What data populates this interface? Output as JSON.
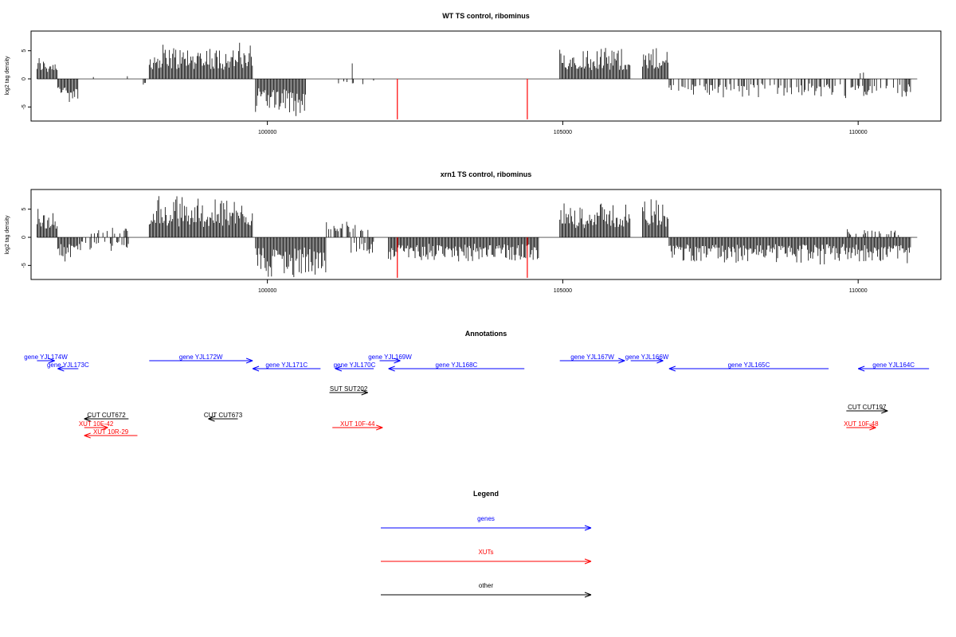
{
  "chart_data": [
    {
      "type": "bar",
      "title": "WT TS control, ribominus",
      "ylabel": "log2 tag density",
      "xlim": [
        96000,
        111400
      ],
      "ylim": [
        -7.5,
        8.5
      ],
      "x_ticks": [
        100000,
        105000,
        110000
      ],
      "x_tick_labels": [
        "100000",
        "105000",
        "110000"
      ],
      "y_ticks": [
        -5,
        0,
        5
      ],
      "y_tick_labels": [
        "-5",
        "0",
        "5"
      ],
      "x_range": [
        96100,
        111000
      ],
      "segments": [
        {
          "from": 96100,
          "to": 96450,
          "sign": 1,
          "amp": 3.0
        },
        {
          "from": 96450,
          "to": 96800,
          "sign": -1,
          "amp": 3.0
        },
        {
          "from": 97000,
          "to": 97900,
          "sign": 1,
          "amp": 0.6,
          "density": 0.05
        },
        {
          "from": 97900,
          "to": 97950,
          "sign": -1,
          "amp": 0.8
        },
        {
          "from": 98000,
          "to": 99750,
          "sign": 1,
          "amp": 4.5
        },
        {
          "from": 99800,
          "to": 100650,
          "sign": -1,
          "amp": 4.5
        },
        {
          "from": 101150,
          "to": 102000,
          "sign": -1,
          "amp": 0.8,
          "density": 0.2
        },
        {
          "from": 101400,
          "to": 101550,
          "sign": 1,
          "amp": 2.0,
          "density": 0.2
        },
        {
          "from": 104950,
          "to": 106150,
          "sign": 1,
          "amp": 4.2
        },
        {
          "from": 106350,
          "to": 106800,
          "sign": 1,
          "amp": 3.8
        },
        {
          "from": 106800,
          "to": 110900,
          "sign": -1,
          "amp": 2.3,
          "density": 0.5
        },
        {
          "from": 110000,
          "to": 110100,
          "sign": 1,
          "amp": 1.2,
          "density": 0.3
        }
      ],
      "highlights": [
        {
          "x": 102200,
          "value": -7.2,
          "color": "#ff0000"
        },
        {
          "x": 104400,
          "value": -7.2,
          "color": "#ff0000"
        }
      ]
    },
    {
      "type": "bar",
      "title": "xrn1 TS control, ribominus",
      "ylabel": "log2 tag density",
      "xlim": [
        96000,
        111400
      ],
      "ylim": [
        -7.5,
        8.5
      ],
      "x_ticks": [
        100000,
        105000,
        110000
      ],
      "x_tick_labels": [
        "100000",
        "105000",
        "110000"
      ],
      "y_ticks": [
        -5,
        0,
        5
      ],
      "y_tick_labels": [
        "-5",
        "0",
        "5"
      ],
      "x_range": [
        96100,
        111000
      ],
      "segments": [
        {
          "from": 96100,
          "to": 96450,
          "sign": 1,
          "amp": 3.5
        },
        {
          "from": 96450,
          "to": 96800,
          "sign": -1,
          "amp": 3.0
        },
        {
          "from": 96800,
          "to": 97650,
          "sign": -1,
          "amp": 1.8,
          "density": 0.5
        },
        {
          "from": 97000,
          "to": 97650,
          "sign": 1,
          "amp": 1.2,
          "density": 0.3
        },
        {
          "from": 98000,
          "to": 99750,
          "sign": 1,
          "amp": 5.2
        },
        {
          "from": 99800,
          "to": 101000,
          "sign": -1,
          "amp": 5.0
        },
        {
          "from": 101000,
          "to": 101800,
          "sign": 1,
          "amp": 2.2,
          "density": 0.6
        },
        {
          "from": 101400,
          "to": 101800,
          "sign": -1,
          "amp": 2.0,
          "density": 0.5
        },
        {
          "from": 102050,
          "to": 104600,
          "sign": -1,
          "amp": 3.0
        },
        {
          "from": 104950,
          "to": 106150,
          "sign": 1,
          "amp": 4.5
        },
        {
          "from": 106350,
          "to": 106800,
          "sign": 1,
          "amp": 5.0
        },
        {
          "from": 106800,
          "to": 110900,
          "sign": -1,
          "amp": 3.3
        },
        {
          "from": 109800,
          "to": 110700,
          "sign": 1,
          "amp": 1.0,
          "density": 0.3
        }
      ],
      "highlights": [
        {
          "x": 102200,
          "value": -7.2,
          "color": "#ff0000"
        },
        {
          "x": 104400,
          "value": -7.2,
          "color": "#ff0000"
        }
      ]
    }
  ],
  "annotations": {
    "title": "Annotations",
    "features": [
      {
        "label": "gene YJL174W",
        "x1": 96100,
        "x2": 96400,
        "dir": "right",
        "row": 0,
        "color": "#0000ff"
      },
      {
        "label": "gene YJL173C",
        "x1": 96450,
        "x2": 96800,
        "dir": "left",
        "row": 1,
        "color": "#0000ff"
      },
      {
        "label": "gene YJL172W",
        "x1": 98000,
        "x2": 99750,
        "dir": "right",
        "row": 0,
        "color": "#0000ff"
      },
      {
        "label": "gene YJL171C",
        "x1": 99750,
        "x2": 100900,
        "dir": "left",
        "row": 1,
        "color": "#0000ff"
      },
      {
        "label": "gene YJL170C",
        "x1": 101150,
        "x2": 101800,
        "dir": "left",
        "row": 1,
        "color": "#0000ff"
      },
      {
        "label": "gene YJL169W",
        "x1": 101900,
        "x2": 102250,
        "dir": "right",
        "row": 0,
        "color": "#0000ff"
      },
      {
        "label": "gene YJL168C",
        "x1": 102050,
        "x2": 104350,
        "dir": "left",
        "row": 1,
        "color": "#0000ff"
      },
      {
        "label": "gene YJL167W",
        "x1": 104950,
        "x2": 106050,
        "dir": "right",
        "row": 0,
        "color": "#0000ff"
      },
      {
        "label": "gene YJL166W",
        "x1": 106150,
        "x2": 106700,
        "dir": "right",
        "row": 0,
        "color": "#0000ff"
      },
      {
        "label": "gene YJL165C",
        "x1": 106800,
        "x2": 109500,
        "dir": "left",
        "row": 1,
        "color": "#0000ff"
      },
      {
        "label": "gene YJL164C",
        "x1": 110000,
        "x2": 111200,
        "dir": "left",
        "row": 1,
        "color": "#0000ff"
      },
      {
        "label": "SUT SUT202",
        "x1": 101050,
        "x2": 101700,
        "dir": "right",
        "row": 3,
        "color": "#000000"
      },
      {
        "label": "CUT CUT197",
        "x1": 109800,
        "x2": 110500,
        "dir": "right",
        "row": 5,
        "color": "#000000"
      },
      {
        "label": "CUT CUT672",
        "x1": 96900,
        "x2": 97650,
        "dir": "left",
        "row": 6,
        "color": "#000000"
      },
      {
        "label": "CUT CUT673",
        "x1": 99000,
        "x2": 99500,
        "dir": "left",
        "row": 6,
        "color": "#000000"
      },
      {
        "label": "XUT 10F-42",
        "x1": 96900,
        "x2": 97300,
        "dir": "right",
        "row": 7,
        "color": "#ff0000"
      },
      {
        "label": "XUT 10F-44",
        "x1": 101100,
        "x2": 101950,
        "dir": "right",
        "row": 7,
        "color": "#ff0000"
      },
      {
        "label": "XUT 10F-48",
        "x1": 109800,
        "x2": 110300,
        "dir": "right",
        "row": 7,
        "color": "#ff0000"
      },
      {
        "label": "XUT 10R-29",
        "x1": 96900,
        "x2": 97800,
        "dir": "left",
        "row": 8,
        "color": "#ff0000"
      }
    ]
  },
  "legend": {
    "title": "Legend",
    "items": [
      {
        "label": "genes",
        "color": "#0000ff"
      },
      {
        "label": "XUTs",
        "color": "#ff0000"
      },
      {
        "label": "other",
        "color": "#000000"
      }
    ]
  }
}
